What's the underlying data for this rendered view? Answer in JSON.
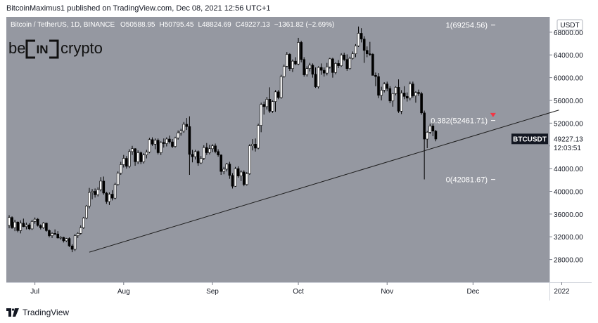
{
  "header": {
    "publisher_line": "BitcoinMaximus1 published on TradingView.com, Dec 08, 2021 12:56 UTC+1"
  },
  "legend": {
    "symbol": "Bitcoin / TetherUS, 1D, BINANCE",
    "o_label": "O",
    "o_value": "50588.95",
    "h_label": "H",
    "h_value": "50795.45",
    "l_label": "L",
    "l_value": "48824.69",
    "c_label": "C",
    "c_value": "49227.13",
    "change": "−1361.82 (−2.69%)"
  },
  "watermark": {
    "left": "be",
    "middle": "IN",
    "right": "crypto"
  },
  "currency_label": "USDT",
  "footer": {
    "brand": "TradingView"
  },
  "colors": {
    "plot_bg": "#9598a1",
    "candle_up": "#ffffff",
    "candle_down": "#000000",
    "trendline": "#1c1c1c",
    "fib_text": "#ffffff",
    "price_tag_bg": "#131722",
    "arrow_red": "#f23645"
  },
  "chart_data": {
    "type": "candlestick",
    "y_axis_ticks": [
      "28000.00",
      "32000.00",
      "36000.00",
      "40000.00",
      "44000.00",
      "48000.00",
      "52000.00",
      "56000.00",
      "60000.00",
      "64000.00",
      "68000.00"
    ],
    "x_axis_ticks": [
      "Jul",
      "Aug",
      "Sep",
      "Oct",
      "Nov",
      "Dec",
      "2022"
    ],
    "ylim": [
      24000,
      70700
    ],
    "series": [
      {
        "start_date": "2021-06-22",
        "ohlc": [
          [
            34000,
            35800,
            33500,
            35400
          ],
          [
            35400,
            35600,
            33400,
            33600
          ],
          [
            33600,
            35000,
            33000,
            34600
          ],
          [
            34600,
            34700,
            32800,
            33100
          ],
          [
            33100,
            34900,
            32600,
            34400
          ],
          [
            34400,
            35200,
            33700,
            33800
          ],
          [
            33800,
            34500,
            33300,
            34100
          ],
          [
            34100,
            34400,
            33200,
            33400
          ],
          [
            33400,
            35000,
            33200,
            34700
          ],
          [
            34700,
            35400,
            34300,
            35100
          ],
          [
            35100,
            35300,
            33800,
            34000
          ],
          [
            34000,
            34200,
            33300,
            33600
          ],
          [
            33600,
            34600,
            33400,
            34400
          ],
          [
            34400,
            34500,
            32900,
            33100
          ],
          [
            33100,
            33300,
            31900,
            32200
          ],
          [
            32200,
            32800,
            31800,
            32600
          ],
          [
            32600,
            33300,
            32300,
            32500
          ],
          [
            32500,
            33000,
            31700,
            31800
          ],
          [
            31800,
            32100,
            31500,
            31900
          ],
          [
            31900,
            32000,
            31000,
            31300
          ],
          [
            31300,
            31800,
            31100,
            31700
          ],
          [
            31700,
            31900,
            30200,
            30400
          ],
          [
            30400,
            30700,
            29300,
            29800
          ],
          [
            29800,
            32500,
            29500,
            32200
          ],
          [
            32200,
            32800,
            31800,
            32600
          ],
          [
            32600,
            34000,
            32400,
            33600
          ],
          [
            33600,
            35500,
            33400,
            35300
          ],
          [
            35300,
            37600,
            35100,
            37400
          ],
          [
            37400,
            40600,
            37000,
            39800
          ],
          [
            39800,
            40400,
            38600,
            40000
          ],
          [
            40000,
            40500,
            38900,
            39400
          ],
          [
            39400,
            40700,
            39100,
            40300
          ],
          [
            40300,
            42500,
            40000,
            41800
          ],
          [
            41800,
            42600,
            39400,
            39700
          ],
          [
            39700,
            39900,
            37800,
            38200
          ],
          [
            38200,
            39800,
            37600,
            39500
          ],
          [
            39500,
            40200,
            38400,
            38800
          ],
          [
            38800,
            41500,
            38600,
            41200
          ],
          [
            41200,
            43500,
            41000,
            43200
          ],
          [
            43200,
            45200,
            42900,
            44700
          ],
          [
            44700,
            46400,
            44200,
            45800
          ],
          [
            45800,
            46200,
            44000,
            44400
          ],
          [
            44400,
            47400,
            44100,
            47000
          ],
          [
            47000,
            48000,
            46400,
            47500
          ],
          [
            47500,
            47600,
            44500,
            45200
          ],
          [
            45200,
            47200,
            44800,
            46800
          ],
          [
            46800,
            47000,
            44800,
            45200
          ],
          [
            45200,
            46700,
            44900,
            46400
          ],
          [
            46400,
            47300,
            45800,
            46900
          ],
          [
            46900,
            49400,
            46700,
            49100
          ],
          [
            49100,
            49500,
            48000,
            48300
          ],
          [
            48300,
            49300,
            47400,
            49000
          ],
          [
            49000,
            49300,
            46500,
            46800
          ],
          [
            46800,
            48800,
            46400,
            48600
          ],
          [
            48600,
            49300,
            47700,
            48400
          ],
          [
            48400,
            49500,
            47900,
            49200
          ],
          [
            49200,
            49800,
            48400,
            48700
          ],
          [
            48700,
            49200,
            47600,
            47900
          ],
          [
            47900,
            49600,
            47700,
            49400
          ],
          [
            49400,
            50700,
            49100,
            50300
          ],
          [
            50300,
            51000,
            49800,
            50600
          ],
          [
            50600,
            52200,
            50300,
            51800
          ],
          [
            51800,
            52900,
            50800,
            51400
          ],
          [
            51400,
            53200,
            42900,
            46500
          ],
          [
            46500,
            47300,
            45100,
            46100
          ],
          [
            46100,
            47300,
            45600,
            47000
          ],
          [
            47000,
            47200,
            44500,
            45000
          ],
          [
            45000,
            46200,
            44800,
            45800
          ],
          [
            45800,
            48100,
            45500,
            47700
          ],
          [
            47700,
            48500,
            46400,
            46800
          ],
          [
            46800,
            48200,
            46500,
            47500
          ],
          [
            47500,
            48300,
            46900,
            48000
          ],
          [
            48000,
            48400,
            46700,
            47000
          ],
          [
            47000,
            47400,
            46100,
            46400
          ],
          [
            46400,
            46500,
            42900,
            43500
          ],
          [
            43500,
            44300,
            43000,
            43900
          ],
          [
            43900,
            45000,
            43500,
            44800
          ],
          [
            44800,
            45200,
            42200,
            42800
          ],
          [
            42800,
            43200,
            40500,
            40900
          ],
          [
            40900,
            44300,
            40800,
            44000
          ],
          [
            44000,
            44400,
            42400,
            42700
          ],
          [
            42700,
            43700,
            41800,
            43400
          ],
          [
            43400,
            43700,
            40900,
            41200
          ],
          [
            41200,
            43400,
            41000,
            43100
          ],
          [
            43100,
            48300,
            42900,
            48000
          ],
          [
            48000,
            49200,
            47200,
            48300
          ],
          [
            48300,
            49300,
            47000,
            47600
          ],
          [
            47600,
            51900,
            47400,
            51600
          ],
          [
            51600,
            55600,
            50400,
            55300
          ],
          [
            55300,
            55800,
            53500,
            54900
          ],
          [
            54900,
            56600,
            54400,
            56200
          ],
          [
            56200,
            58300,
            53800,
            54100
          ],
          [
            54100,
            56000,
            53800,
            55800
          ],
          [
            55800,
            57800,
            54000,
            57500
          ],
          [
            57500,
            57800,
            56200,
            56500
          ],
          [
            56500,
            60500,
            56300,
            60200
          ],
          [
            60200,
            62300,
            60000,
            62000
          ],
          [
            62000,
            64500,
            61800,
            64100
          ],
          [
            64100,
            64300,
            61200,
            61600
          ],
          [
            61600,
            63200,
            61000,
            62900
          ],
          [
            62900,
            63600,
            62200,
            62400
          ],
          [
            62400,
            67000,
            62200,
            66200
          ],
          [
            66200,
            66500,
            62700,
            63200
          ],
          [
            63200,
            63600,
            60200,
            60500
          ],
          [
            60500,
            62000,
            60200,
            61600
          ],
          [
            61600,
            62600,
            61100,
            62200
          ],
          [
            62200,
            62500,
            60000,
            60600
          ],
          [
            60600,
            61800,
            58200,
            58400
          ],
          [
            58400,
            62000,
            58100,
            61800
          ],
          [
            61800,
            62500,
            60500,
            61300
          ],
          [
            61300,
            61800,
            60200,
            60800
          ],
          [
            60800,
            62600,
            60400,
            61900
          ],
          [
            61900,
            63500,
            61600,
            63300
          ],
          [
            63300,
            63500,
            60000,
            60900
          ],
          [
            60900,
            62700,
            60600,
            62500
          ],
          [
            62500,
            63100,
            61700,
            62100
          ],
          [
            62100,
            64300,
            61900,
            64000
          ],
          [
            64000,
            64400,
            62900,
            63200
          ],
          [
            63200,
            64100,
            61200,
            61600
          ],
          [
            61600,
            63700,
            61400,
            63400
          ],
          [
            63400,
            64600,
            63200,
            64200
          ],
          [
            64200,
            65900,
            63600,
            65600
          ],
          [
            65600,
            69000,
            65400,
            67800
          ],
          [
            67800,
            68700,
            66200,
            66800
          ],
          [
            66800,
            67300,
            62600,
            64800
          ],
          [
            64800,
            65500,
            63600,
            64200
          ],
          [
            64200,
            66300,
            63800,
            64100
          ],
          [
            64100,
            64300,
            60600,
            60400
          ],
          [
            60400,
            60900,
            58500,
            60200
          ],
          [
            60200,
            60800,
            56400,
            56900
          ],
          [
            56900,
            58400,
            56000,
            57800
          ],
          [
            57800,
            59200,
            57400,
            58900
          ],
          [
            58900,
            59300,
            57600,
            58100
          ],
          [
            58100,
            58500,
            55500,
            55900
          ],
          [
            55900,
            57300,
            54900,
            57200
          ],
          [
            57200,
            58500,
            56900,
            58300
          ],
          [
            58300,
            59700,
            53800,
            54100
          ],
          [
            54100,
            57800,
            53600,
            57300
          ],
          [
            57300,
            58500,
            56200,
            56700
          ],
          [
            56700,
            57400,
            55800,
            56400
          ],
          [
            56400,
            59300,
            56000,
            58900
          ],
          [
            58900,
            59300,
            56500,
            56800
          ],
          [
            56800,
            57600,
            55600,
            57400
          ],
          [
            57400,
            57900,
            56800,
            57200
          ],
          [
            57200,
            57500,
            53500,
            53800
          ],
          [
            53800,
            54200,
            42100,
            49200
          ],
          [
            49200,
            50600,
            47600,
            50400
          ],
          [
            50400,
            51900,
            50100,
            51500
          ],
          [
            51500,
            52200,
            49700,
            50600
          ],
          [
            50600,
            50800,
            48800,
            49200
          ]
        ]
      }
    ],
    "trendline": {
      "from": [
        "2021-07-20",
        29300
      ],
      "to": [
        "2021-12-31",
        54300
      ]
    },
    "annotations": [
      {
        "text": "1(69254.56)",
        "price": 69254.56
      },
      {
        "text": "0.382(52461.71)",
        "price": 52461.71
      },
      {
        "text": "0(42081.67)",
        "price": 42081.67
      }
    ],
    "current_price": {
      "symbol": "BTCUSDT",
      "price": "49227.13",
      "countdown": "12:03:51",
      "value": 49227.13
    },
    "marker": {
      "type": "down-arrow",
      "date": "2021-12-08",
      "price": 53300
    }
  }
}
